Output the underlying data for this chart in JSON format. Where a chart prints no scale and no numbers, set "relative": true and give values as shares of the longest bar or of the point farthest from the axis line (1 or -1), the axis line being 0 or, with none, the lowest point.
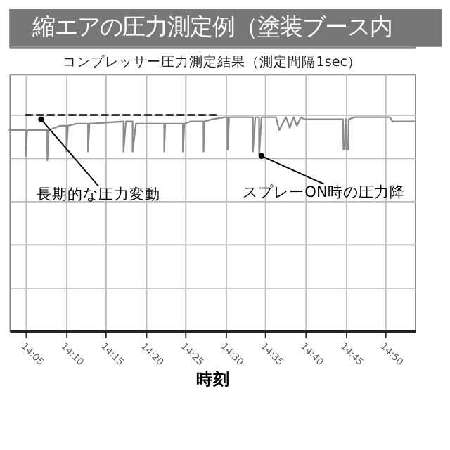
{
  "chart_data": {
    "type": "step",
    "title": "縮エアの圧力測定例（塗装ブース内",
    "subtitle": "コンプレッサー圧力測定結果（測定間隔1sec）",
    "xlabel": "時刻",
    "relative": true,
    "grid": true,
    "tick_labels": "x",
    "line_style": "solid",
    "marker": "none",
    "xlim": [
      14.049,
      14.895
    ],
    "xticks": [
      {
        "value": 14.0833,
        "label": "14:05"
      },
      {
        "value": 14.1667,
        "label": "14:10"
      },
      {
        "value": 14.25,
        "label": "14:15"
      },
      {
        "value": 14.3333,
        "label": "14:20"
      },
      {
        "value": 14.4167,
        "label": "14:25"
      },
      {
        "value": 14.5,
        "label": "14:30"
      },
      {
        "value": 14.5833,
        "label": "14:35"
      },
      {
        "value": 14.6667,
        "label": "14:40"
      },
      {
        "value": 14.75,
        "label": "14:45"
      },
      {
        "value": 14.8333,
        "label": "14:50"
      }
    ],
    "series": [
      {
        "color": "#8c8c8c",
        "x": [
          14.049,
          14.083,
          14.083,
          14.086,
          14.128,
          14.128,
          14.131,
          14.155,
          14.168,
          14.168,
          14.171,
          14.189,
          14.213,
          14.213,
          14.216,
          14.287,
          14.287,
          14.292,
          14.306,
          14.306,
          14.313,
          14.372,
          14.372,
          14.374,
          14.411,
          14.411,
          14.414,
          14.427,
          14.454,
          14.454,
          14.456,
          14.472,
          14.499,
          14.504,
          14.504,
          14.505,
          14.507,
          14.552,
          14.557,
          14.557,
          14.562,
          14.57,
          14.57,
          14.575,
          14.605,
          14.612,
          14.626,
          14.634,
          14.642,
          14.649,
          14.657,
          14.665,
          14.745,
          14.746,
          14.749,
          14.75,
          14.752,
          14.753,
          14.756,
          14.757,
          14.769,
          14.843,
          14.848,
          14.895
        ],
        "values": [
          0.93,
          0.93,
          0.81,
          0.93,
          0.93,
          0.79,
          0.93,
          0.95,
          0.95,
          0.83,
          0.95,
          0.96,
          0.96,
          0.83,
          0.96,
          0.97,
          0.83,
          0.97,
          0.97,
          0.83,
          0.96,
          0.96,
          0.83,
          0.96,
          0.96,
          0.83,
          0.96,
          0.97,
          0.97,
          0.83,
          0.97,
          0.98,
          0.99,
          0.99,
          0.84,
          0.84,
          0.99,
          0.99,
          0.99,
          0.83,
          0.99,
          0.99,
          0.81,
          0.99,
          0.99,
          0.93,
          0.99,
          0.94,
          0.99,
          0.95,
          0.99,
          0.98,
          0.98,
          0.84,
          0.84,
          0.98,
          0.98,
          0.84,
          0.84,
          0.98,
          0.99,
          0.99,
          0.97,
          0.97
        ]
      },
      {
        "type": "line",
        "color": "#000000",
        "line_style": "dashed",
        "x": [
          14.083,
          14.48
        ],
        "values": [
          1.0,
          1.0
        ]
      }
    ],
    "annotations": [
      {
        "text": "長期的な圧力変動",
        "x": 14.115,
        "y": 0.98
      },
      {
        "text": "スプレーON時の圧力降",
        "x": 14.575,
        "y": 0.81
      }
    ]
  }
}
